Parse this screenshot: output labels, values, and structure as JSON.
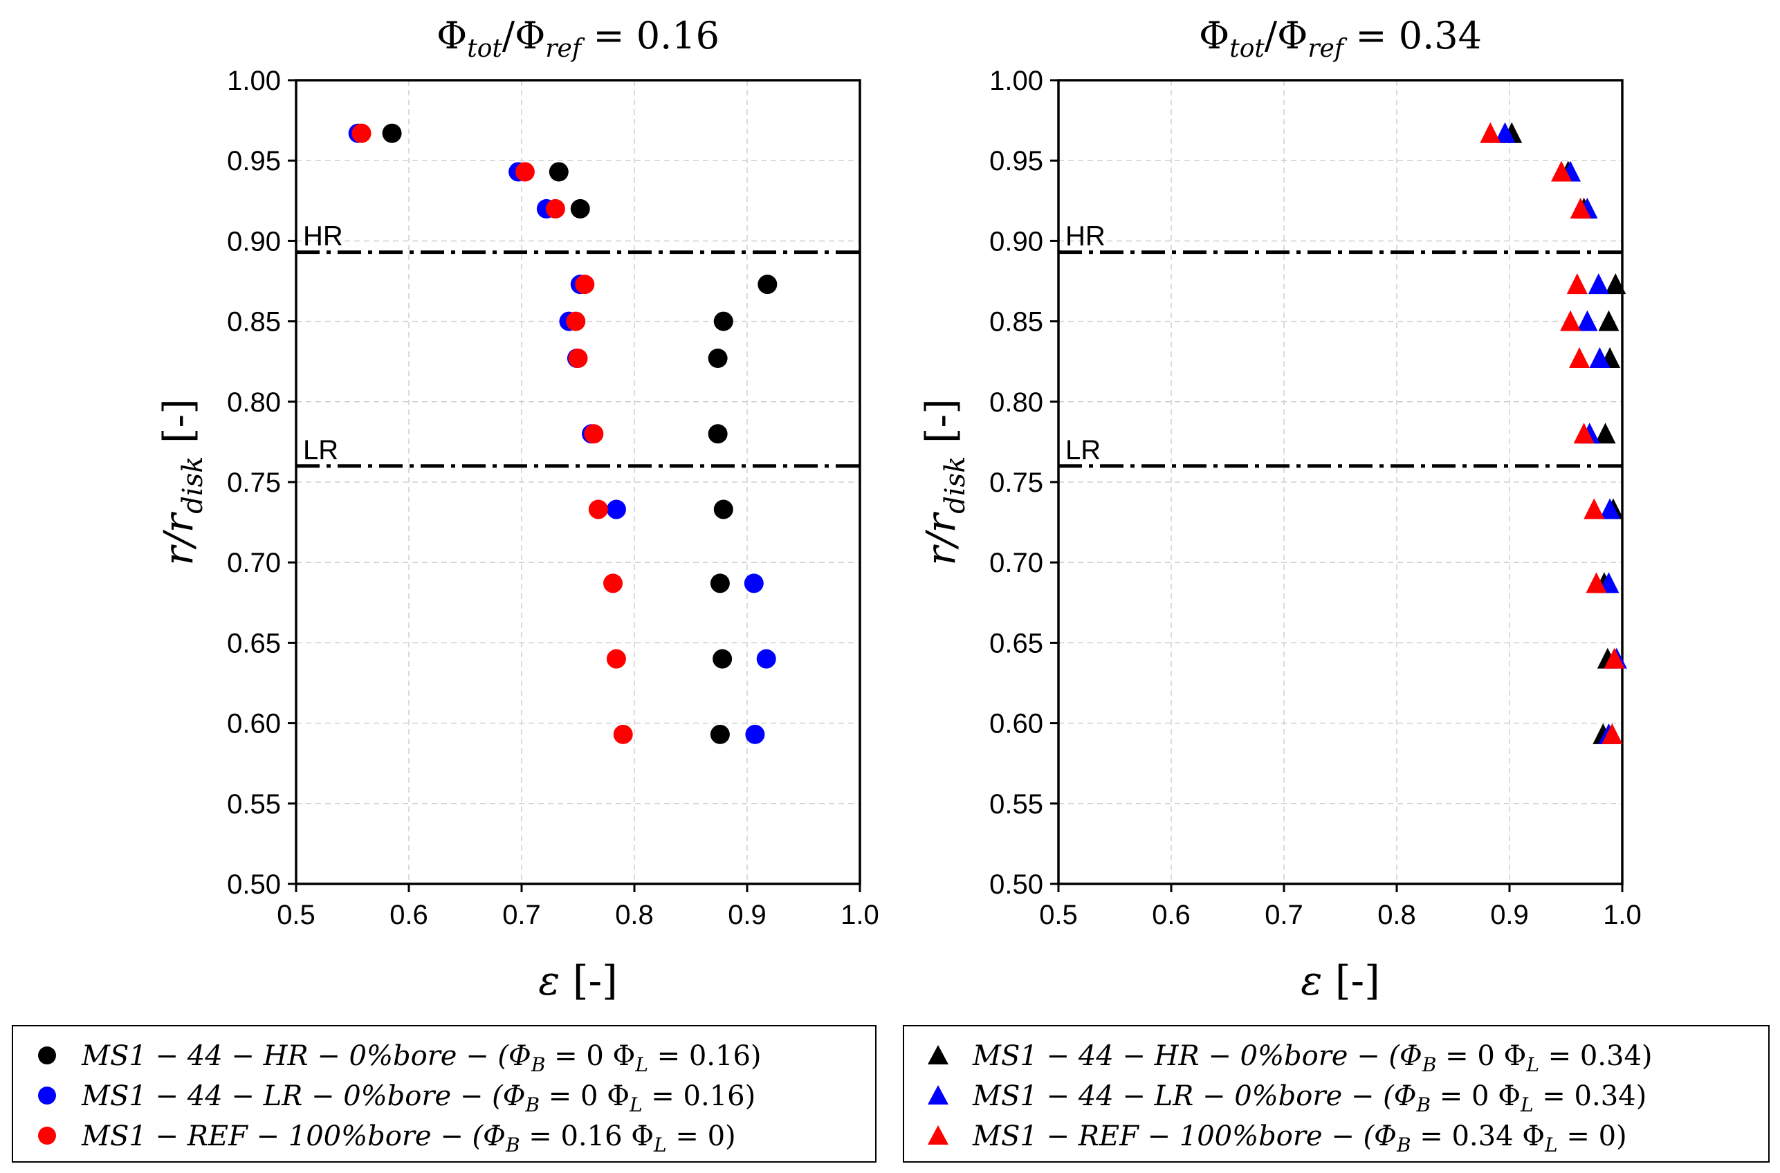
{
  "chart_data": [
    {
      "type": "scatter",
      "title": "Φtot/Φref = 0.16",
      "title_main": "Φ",
      "title_sub1": "tot",
      "title_mid": "/Φ",
      "title_sub2": "ref",
      "title_value": " = 0.16",
      "xlabel": "ε [-]",
      "xlabel_symbol": "ε",
      "xlabel_unit": " [-]",
      "ylabel": "r/rdisk [-]",
      "ylabel_main": "r/r",
      "ylabel_sub": "disk",
      "ylabel_unit": " [-]",
      "xlim": [
        0.5,
        1.0
      ],
      "ylim": [
        0.5,
        1.0
      ],
      "xticks": [
        "0.5",
        "0.6",
        "0.7",
        "0.8",
        "0.9",
        "1.0"
      ],
      "yticks": [
        "0.50",
        "0.55",
        "0.60",
        "0.65",
        "0.70",
        "0.75",
        "0.80",
        "0.85",
        "0.90",
        "0.95",
        "1.00"
      ],
      "grid": true,
      "marker": "circle",
      "reference_lines": [
        {
          "label": "HR",
          "y": 0.893
        },
        {
          "label": "LR",
          "y": 0.76
        }
      ],
      "series": [
        {
          "name": "MS1 − 44 − HR − 0%bore − (ΦB = 0 ΦL = 0.16)",
          "color": "#000000",
          "points": [
            [
              0.585,
              0.967
            ],
            [
              0.733,
              0.943
            ],
            [
              0.752,
              0.92
            ],
            [
              0.918,
              0.873
            ],
            [
              0.879,
              0.85
            ],
            [
              0.874,
              0.827
            ],
            [
              0.874,
              0.78
            ],
            [
              0.879,
              0.733
            ],
            [
              0.876,
              0.687
            ],
            [
              0.878,
              0.64
            ],
            [
              0.876,
              0.593
            ]
          ]
        },
        {
          "name": "MS1 − 44 − LR − 0%bore − (ΦB = 0 ΦL = 0.16)",
          "color": "#0000ff",
          "points": [
            [
              0.555,
              0.967
            ],
            [
              0.697,
              0.943
            ],
            [
              0.722,
              0.92
            ],
            [
              0.752,
              0.873
            ],
            [
              0.742,
              0.85
            ],
            [
              0.749,
              0.827
            ],
            [
              0.762,
              0.78
            ],
            [
              0.784,
              0.733
            ],
            [
              0.906,
              0.687
            ],
            [
              0.917,
              0.64
            ],
            [
              0.907,
              0.593
            ]
          ]
        },
        {
          "name": "MS1 − REF − 100%bore − (ΦB = 0.16 ΦL = 0)",
          "color": "#ff0000",
          "points": [
            [
              0.558,
              0.967
            ],
            [
              0.703,
              0.943
            ],
            [
              0.73,
              0.92
            ],
            [
              0.756,
              0.873
            ],
            [
              0.748,
              0.85
            ],
            [
              0.75,
              0.827
            ],
            [
              0.764,
              0.78
            ],
            [
              0.768,
              0.733
            ],
            [
              0.781,
              0.687
            ],
            [
              0.784,
              0.64
            ],
            [
              0.79,
              0.593
            ]
          ]
        }
      ]
    },
    {
      "type": "scatter",
      "title": "Φtot/Φref = 0.34",
      "title_main": "Φ",
      "title_sub1": "tot",
      "title_mid": "/Φ",
      "title_sub2": "ref",
      "title_value": " = 0.34",
      "xlabel": "ε [-]",
      "xlabel_symbol": "ε",
      "xlabel_unit": " [-]",
      "ylabel": "r/rdisk [-]",
      "ylabel_main": "r/r",
      "ylabel_sub": "disk",
      "ylabel_unit": " [-]",
      "xlim": [
        0.5,
        1.0
      ],
      "ylim": [
        0.5,
        1.0
      ],
      "xticks": [
        "0.5",
        "0.6",
        "0.7",
        "0.8",
        "0.9",
        "1.0"
      ],
      "yticks": [
        "0.50",
        "0.55",
        "0.60",
        "0.65",
        "0.70",
        "0.75",
        "0.80",
        "0.85",
        "0.90",
        "0.95",
        "1.00"
      ],
      "grid": true,
      "marker": "triangle",
      "reference_lines": [
        {
          "label": "HR",
          "y": 0.893
        },
        {
          "label": "LR",
          "y": 0.76
        }
      ],
      "series": [
        {
          "name": "MS1 − 44 − HR − 0%bore − (ΦB = 0 ΦL = 0.34)",
          "color": "#000000",
          "points": [
            [
              0.902,
              0.967
            ],
            [
              0.952,
              0.943
            ],
            [
              0.966,
              0.92
            ],
            [
              0.994,
              0.873
            ],
            [
              0.988,
              0.85
            ],
            [
              0.989,
              0.827
            ],
            [
              0.985,
              0.78
            ],
            [
              0.992,
              0.733
            ],
            [
              0.984,
              0.687
            ],
            [
              0.987,
              0.64
            ],
            [
              0.983,
              0.593
            ]
          ]
        },
        {
          "name": "MS1 − 44 − LR − 0%bore − (ΦB = 0 ΦL = 0.34)",
          "color": "#0000ff",
          "points": [
            [
              0.896,
              0.967
            ],
            [
              0.954,
              0.943
            ],
            [
              0.969,
              0.92
            ],
            [
              0.979,
              0.873
            ],
            [
              0.969,
              0.85
            ],
            [
              0.98,
              0.827
            ],
            [
              0.971,
              0.78
            ],
            [
              0.989,
              0.733
            ],
            [
              0.988,
              0.687
            ],
            [
              0.995,
              0.64
            ],
            [
              0.988,
              0.593
            ]
          ]
        },
        {
          "name": "MS1 − REF − 100%bore − (ΦB = 0.34 ΦL = 0)",
          "color": "#ff0000",
          "points": [
            [
              0.883,
              0.967
            ],
            [
              0.946,
              0.943
            ],
            [
              0.963,
              0.92
            ],
            [
              0.96,
              0.873
            ],
            [
              0.954,
              0.85
            ],
            [
              0.962,
              0.827
            ],
            [
              0.966,
              0.78
            ],
            [
              0.975,
              0.733
            ],
            [
              0.977,
              0.687
            ],
            [
              0.993,
              0.64
            ],
            [
              0.991,
              0.593
            ]
          ]
        }
      ]
    }
  ],
  "legends": [
    {
      "marker": "circle",
      "items": [
        {
          "color": "#000000",
          "name": "MS1 − 44 − HR − 0%bore − (ΦB = 0 ΦL = 0.16)",
          "pre": "MS1 − 44 − HR − 0%bore − (Φ",
          "b": "B",
          "mid": " = 0 Φ",
          "l": "L",
          "post": " = 0.16)"
        },
        {
          "color": "#0000ff",
          "name": "MS1 − 44 − LR − 0%bore − (ΦB = 0 ΦL = 0.16)",
          "pre": "MS1 − 44 − LR − 0%bore − (Φ",
          "b": "B",
          "mid": " = 0 Φ",
          "l": "L",
          "post": " = 0.16)"
        },
        {
          "color": "#ff0000",
          "name": "MS1 − REF − 100%bore − (ΦB = 0.16 ΦL = 0)",
          "pre": "MS1 − REF − 100%bore − (Φ",
          "b": "B",
          "mid": " = 0.16 Φ",
          "l": "L",
          "post": " = 0)"
        }
      ]
    },
    {
      "marker": "triangle",
      "items": [
        {
          "color": "#000000",
          "name": "MS1 − 44 − HR − 0%bore − (ΦB = 0 ΦL = 0.34)",
          "pre": "MS1 − 44 − HR − 0%bore − (Φ",
          "b": "B",
          "mid": " = 0 Φ",
          "l": "L",
          "post": " = 0.34)"
        },
        {
          "color": "#0000ff",
          "name": "MS1 − 44 − LR − 0%bore − (ΦB = 0 ΦL = 0.34)",
          "pre": "MS1 − 44 − LR − 0%bore − (Φ",
          "b": "B",
          "mid": " = 0 Φ",
          "l": "L",
          "post": " = 0.34)"
        },
        {
          "color": "#ff0000",
          "name": "MS1 − REF − 100%bore − (ΦB = 0.34 ΦL = 0)",
          "pre": "MS1 − REF − 100%bore − (Φ",
          "b": "B",
          "mid": " = 0.34 Φ",
          "l": "L",
          "post": " = 0)"
        }
      ]
    }
  ]
}
